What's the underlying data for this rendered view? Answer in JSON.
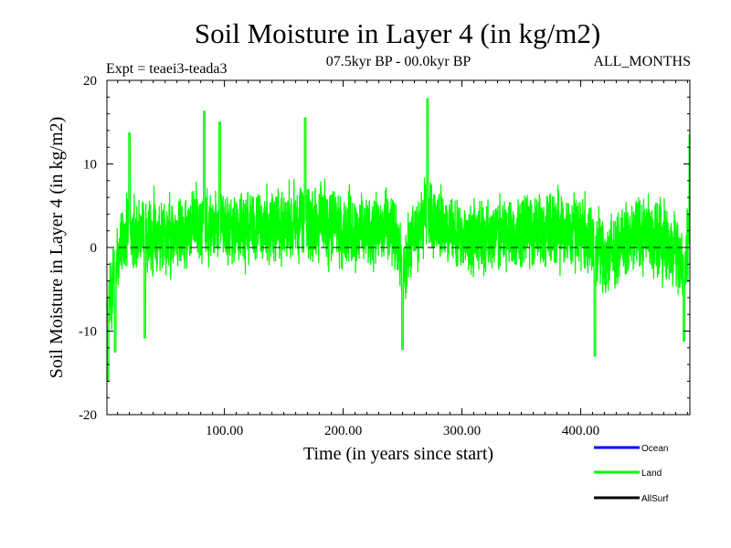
{
  "chart_data": {
    "type": "line",
    "title": "Soil Moisture in Layer 4 (in kg/m2)",
    "subtitle_left": "Expt = teaei3-teada3",
    "subtitle_center": "07.5kyr BP - 00.0kyr BP",
    "subtitle_right": "ALL_MONTHS",
    "xlabel": "Time (in years since start)",
    "ylabel": "Soil Moisture in Layer 4 (in kg/m2)",
    "xlim": [
      1,
      492
    ],
    "ylim": [
      -20,
      20
    ],
    "x_ticks": [
      {
        "value": 100,
        "label": "100.00"
      },
      {
        "value": 200,
        "label": "200.00"
      },
      {
        "value": 300,
        "label": "300.00"
      },
      {
        "value": 400,
        "label": "400.00"
      }
    ],
    "y_ticks": [
      {
        "value": 20,
        "label": "20"
      },
      {
        "value": 10,
        "label": "10"
      },
      {
        "value": 0,
        "label": "0"
      },
      {
        "value": -10,
        "label": "-10"
      },
      {
        "value": -20,
        "label": "-20"
      }
    ],
    "zero_line": true,
    "series": [
      {
        "name": "Land",
        "color": "#00ff00",
        "x_start": 1,
        "x_end": 492,
        "points_per_year": 12,
        "trend_x": [
          1,
          5,
          10,
          20,
          40,
          60,
          80,
          100,
          130,
          160,
          200,
          240,
          250,
          270,
          300,
          350,
          400,
          420,
          450,
          480,
          488,
          492
        ],
        "trend_y": [
          -9,
          -5,
          -1,
          2,
          1,
          2,
          3,
          2,
          2.5,
          3,
          2.5,
          2,
          -2,
          4,
          1,
          2,
          2,
          -1,
          2,
          0,
          -4,
          4
        ],
        "amplitude": 5.5,
        "peaks": [
          {
            "x": 2,
            "y": -16
          },
          {
            "x": 8,
            "y": -12.5
          },
          {
            "x": 20,
            "y": 13.7
          },
          {
            "x": 33,
            "y": -10.8
          },
          {
            "x": 83,
            "y": 16.3
          },
          {
            "x": 96,
            "y": 15
          },
          {
            "x": 168,
            "y": 15.5
          },
          {
            "x": 250,
            "y": -12.2
          },
          {
            "x": 271,
            "y": 17.8
          },
          {
            "x": 412,
            "y": -13
          },
          {
            "x": 487,
            "y": -11.2
          },
          {
            "x": 492,
            "y": 13.5
          }
        ]
      }
    ],
    "legend": {
      "placement": "bottom-right",
      "entries": [
        {
          "label": "Ocean",
          "color": "#0000ff"
        },
        {
          "label": "Land",
          "color": "#00ff00"
        },
        {
          "label": "AllSurf",
          "color": "#000000"
        }
      ]
    }
  }
}
